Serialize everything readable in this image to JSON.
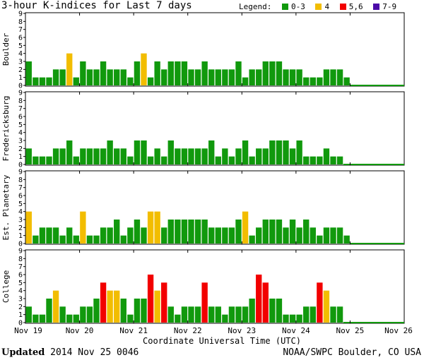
{
  "title": "3-hour K-indices for Last 7 days",
  "legend": {
    "label": "Legend:",
    "items": [
      {
        "range": "0-3",
        "color": "#11990d"
      },
      {
        "range": "4",
        "color": "#f2bd00"
      },
      {
        "range": "5,6",
        "color": "#f20000"
      },
      {
        "range": "7-9",
        "color": "#4b0aa8"
      }
    ]
  },
  "footer": {
    "updated_label": "Updated",
    "updated_value": "2014 Nov 25 0046",
    "credit": "NOAA/SWPC Boulder, CO USA"
  },
  "chart_data": {
    "type": "bar",
    "title": "3-hour K-indices for Last 7 days",
    "xlabel": "Coordinate Universal Time (UTC)",
    "x_ticks": [
      "Nov 19",
      "Nov 20",
      "Nov 21",
      "Nov 22",
      "Nov 23",
      "Nov 24",
      "Nov 25",
      "Nov 26"
    ],
    "ylim": [
      0,
      9
    ],
    "y_ticks": [
      0,
      1,
      2,
      3,
      4,
      5,
      6,
      7,
      8,
      9
    ],
    "bins_per_panel": 56,
    "grid": false,
    "panels": [
      {
        "name": "Boulder",
        "values": [
          3,
          1,
          1,
          1,
          2,
          2,
          4,
          1,
          3,
          2,
          2,
          3,
          2,
          2,
          2,
          1,
          3,
          4,
          1,
          3,
          2,
          3,
          3,
          3,
          2,
          2,
          3,
          2,
          2,
          2,
          2,
          3,
          1,
          2,
          2,
          3,
          3,
          3,
          2,
          2,
          2,
          1,
          1,
          1,
          2,
          2,
          2,
          1
        ]
      },
      {
        "name": "Fredericksburg",
        "values": [
          2,
          1,
          1,
          1,
          2,
          2,
          3,
          1,
          2,
          2,
          2,
          2,
          3,
          2,
          2,
          1,
          3,
          3,
          1,
          2,
          1,
          3,
          2,
          2,
          2,
          2,
          2,
          3,
          1,
          2,
          1,
          2,
          3,
          1,
          2,
          2,
          3,
          3,
          3,
          2,
          3,
          1,
          1,
          1,
          2,
          1,
          1,
          0
        ]
      },
      {
        "name": "Est. Planetary",
        "values": [
          4,
          1,
          2,
          2,
          2,
          1,
          2,
          1,
          4,
          1,
          1,
          2,
          2,
          3,
          1,
          2,
          3,
          2,
          4,
          4,
          2,
          3,
          3,
          3,
          3,
          3,
          3,
          2,
          2,
          2,
          2,
          3,
          4,
          1,
          2,
          3,
          3,
          3,
          2,
          3,
          2,
          3,
          2,
          1,
          2,
          2,
          2,
          1
        ]
      },
      {
        "name": "College",
        "values": [
          2,
          1,
          1,
          3,
          4,
          2,
          1,
          1,
          2,
          2,
          3,
          5,
          4,
          4,
          3,
          1,
          3,
          3,
          6,
          4,
          5,
          2,
          1,
          2,
          2,
          2,
          5,
          2,
          2,
          1,
          2,
          2,
          2,
          3,
          6,
          5,
          3,
          3,
          1,
          1,
          1,
          2,
          2,
          5,
          4,
          2,
          2,
          0
        ]
      }
    ]
  }
}
